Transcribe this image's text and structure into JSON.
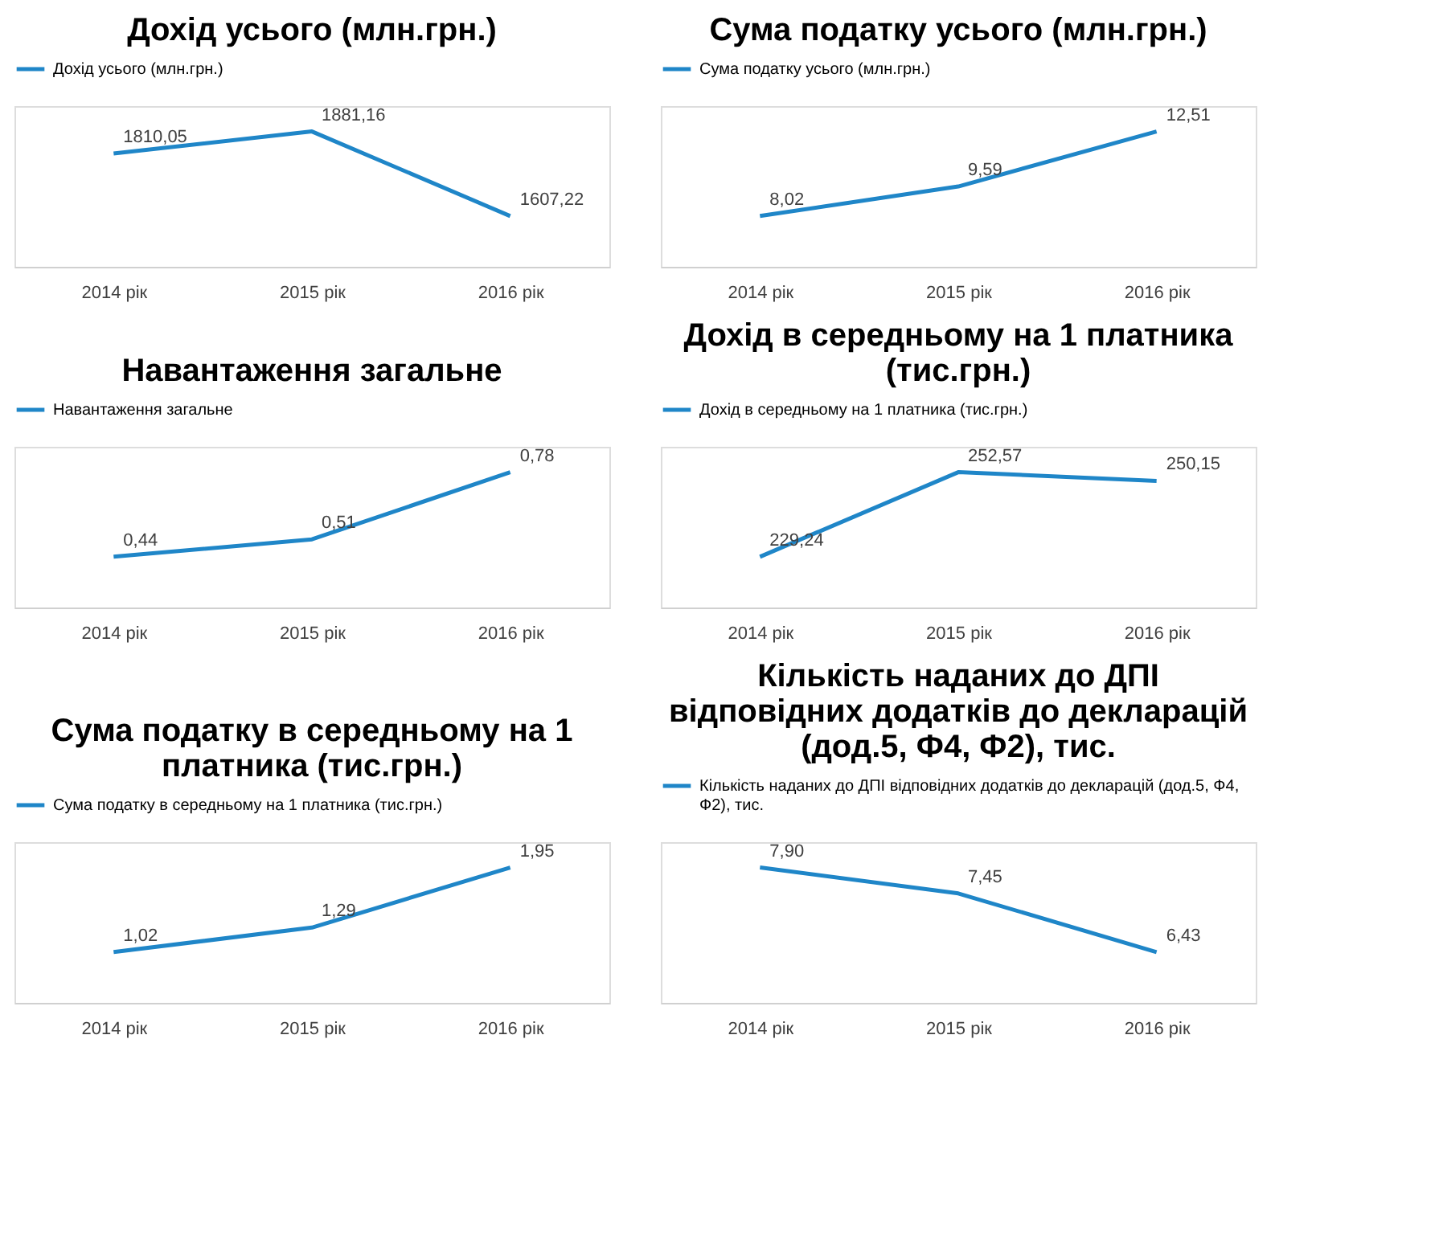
{
  "chart_data": [
    {
      "type": "line",
      "title": "Дохід усього (млн.грн.)",
      "categories": [
        "2014 рік",
        "2015 рік",
        "2016 рік"
      ],
      "legend": "top",
      "series": [
        {
          "name": "Дохід усього (млн.грн.)",
          "color": "#1f86c8",
          "values": [
            1810.05,
            1881.16,
            1607.22
          ],
          "value_labels": [
            "1810,05",
            "1881,16",
            "1607,22"
          ]
        }
      ]
    },
    {
      "type": "line",
      "title": "Сума податку усього  (млн.грн.)",
      "categories": [
        "2014 рік",
        "2015 рік",
        "2016 рік"
      ],
      "legend": "top",
      "series": [
        {
          "name": "Сума податку усього  (млн.грн.)",
          "color": "#1f86c8",
          "values": [
            8.02,
            9.59,
            12.51
          ],
          "value_labels": [
            "8,02",
            "9,59",
            "12,51"
          ]
        }
      ]
    },
    {
      "type": "line",
      "title": "Навантаження загальне",
      "categories": [
        "2014 рік",
        "2015 рік",
        "2016 рік"
      ],
      "legend": "top",
      "series": [
        {
          "name": "Навантаження загальне",
          "color": "#1f86c8",
          "values": [
            0.44,
            0.51,
            0.78
          ],
          "value_labels": [
            "0,44",
            "0,51",
            "0,78"
          ]
        }
      ]
    },
    {
      "type": "line",
      "title": "Дохід в середньому на 1 платника (тис.грн.)",
      "categories": [
        "2014 рік",
        "2015 рік",
        "2016 рік"
      ],
      "legend": "top",
      "series": [
        {
          "name": "Дохід в середньому на 1 платника (тис.грн.)",
          "color": "#1f86c8",
          "values": [
            229.24,
            252.57,
            250.15
          ],
          "value_labels": [
            "229,24",
            "252,57",
            "250,15"
          ]
        }
      ]
    },
    {
      "type": "line",
      "title": "Сума податку в середньому на 1 платника (тис.грн.)",
      "categories": [
        "2014 рік",
        "2015 рік",
        "2016 рік"
      ],
      "legend": "top",
      "series": [
        {
          "name": "Сума податку в середньому на 1 платника (тис.грн.)",
          "color": "#1f86c8",
          "values": [
            1.02,
            1.29,
            1.95
          ],
          "value_labels": [
            "1,02",
            "1,29",
            "1,95"
          ]
        }
      ]
    },
    {
      "type": "line",
      "title": "Кількість наданих до ДПІ відповідних додатків до декларацій (дод.5, Ф4, Ф2), тис.",
      "categories": [
        "2014 рік",
        "2015 рік",
        "2016 рік"
      ],
      "legend": "top",
      "series": [
        {
          "name": "Кількість наданих до ДПІ відповідних додатків до декларацій (дод.5, Ф4, Ф2), тис.",
          "color": "#1f86c8",
          "values": [
            7.9,
            7.45,
            6.43
          ],
          "value_labels": [
            "7,90",
            "7,45",
            "6,43"
          ]
        }
      ]
    }
  ]
}
